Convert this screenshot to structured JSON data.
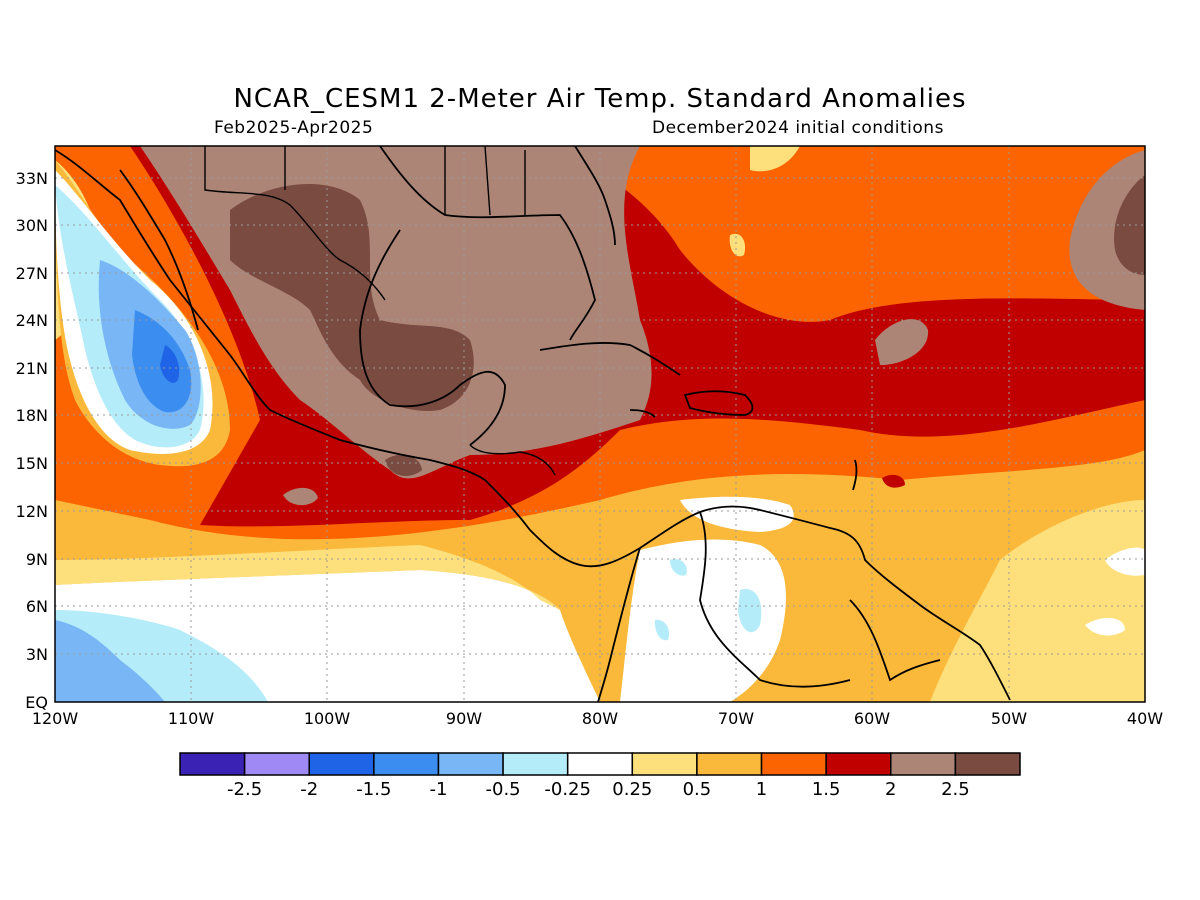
{
  "title": "NCAR_CESM1 2-Meter Air Temp. Standard Anomalies",
  "subtitle_left": "Feb2025-Apr2025",
  "subtitle_right": "December2024 initial conditions",
  "lat_labels": [
    "33N",
    "30N",
    "27N",
    "24N",
    "21N",
    "18N",
    "15N",
    "12N",
    "9N",
    "6N",
    "3N",
    "EQ"
  ],
  "lon_labels": [
    "120W",
    "110W",
    "100W",
    "90W",
    "80W",
    "70W",
    "60W",
    "50W",
    "40W"
  ],
  "colorbar": {
    "colors": [
      "#3a22b5",
      "#9f89f5",
      "#1f64e6",
      "#3b8ef0",
      "#79b6f5",
      "#b5ecfa",
      "#ffffff",
      "#fde07b",
      "#fbb93c",
      "#fb6400",
      "#c00000",
      "#ad8577",
      "#7a4b40"
    ],
    "labels": [
      "-2.5",
      "-2",
      "-1.5",
      "-1",
      "-0.5",
      "-0.25",
      "0.25",
      "0.5",
      "1",
      "1.5",
      "2",
      "2.5"
    ]
  }
}
